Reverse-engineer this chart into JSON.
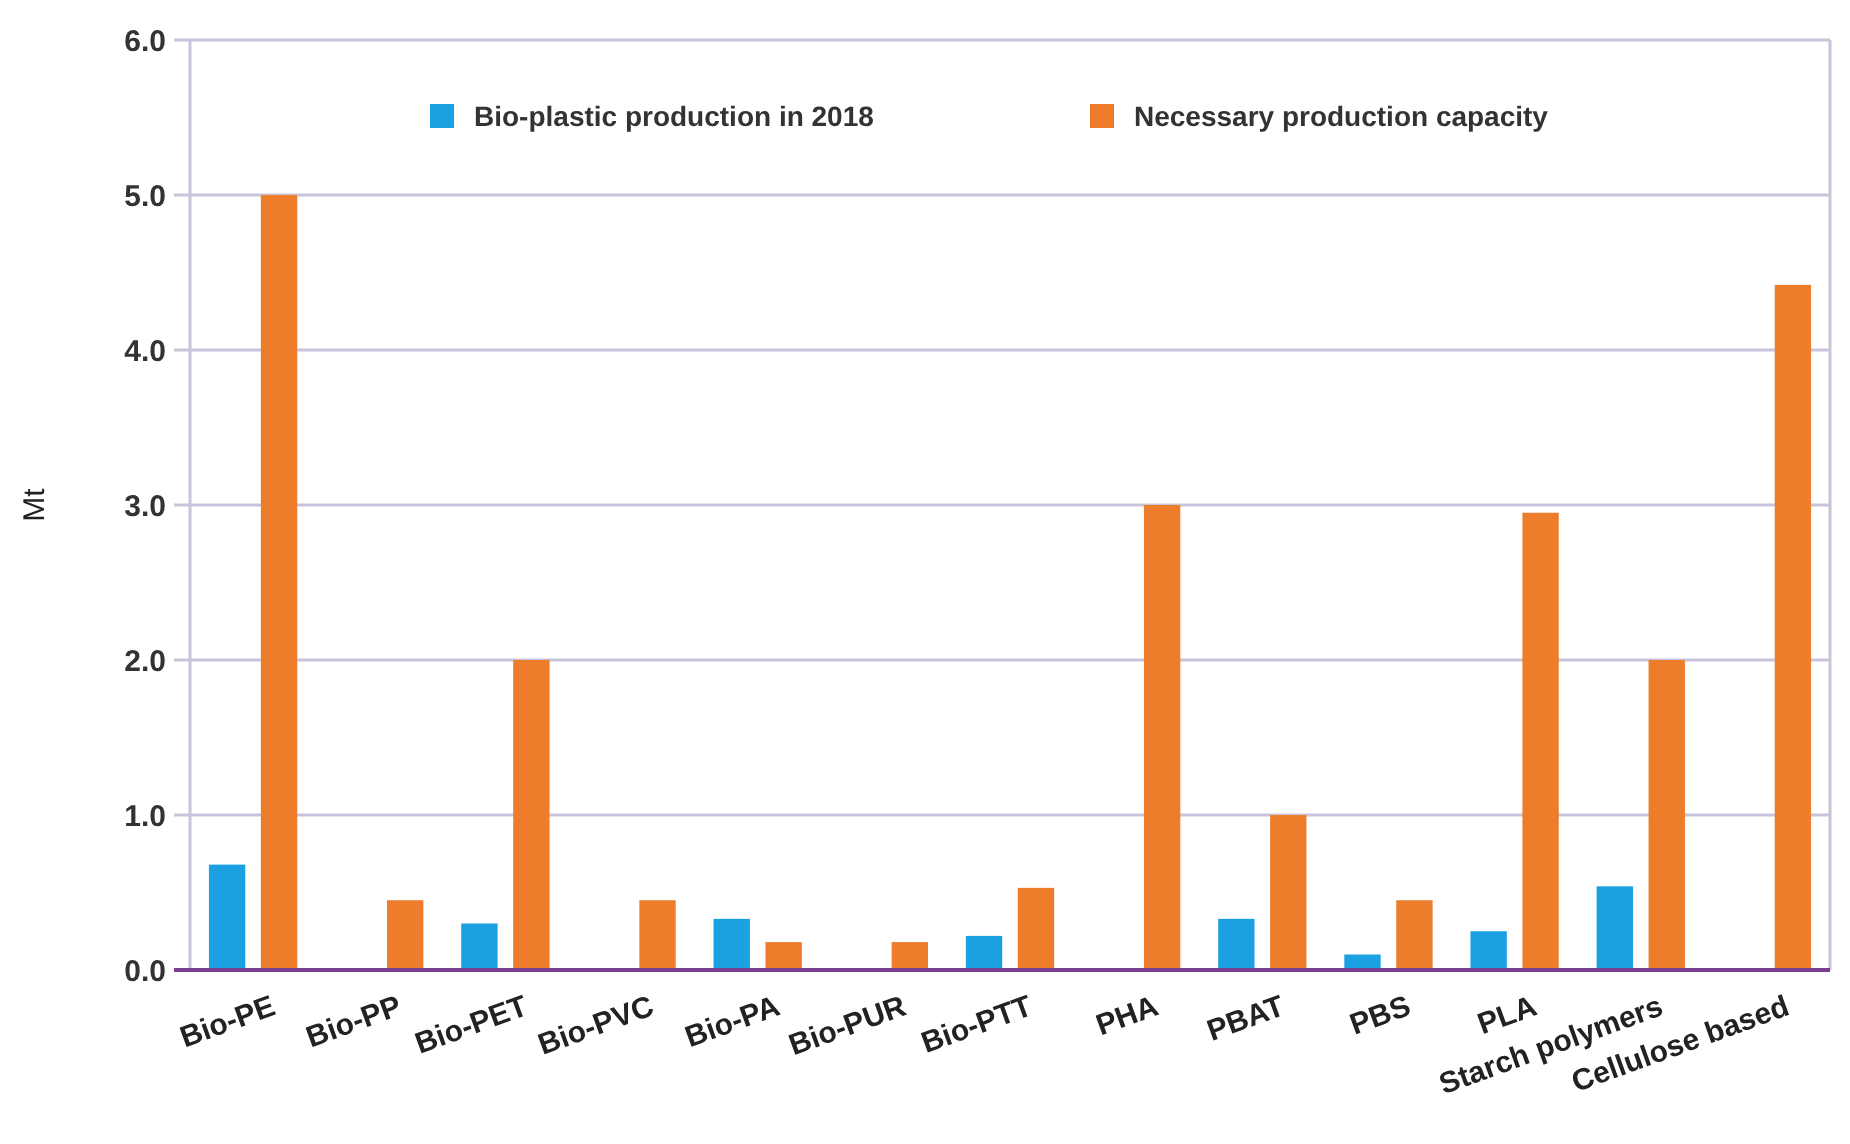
{
  "chart_data": {
    "type": "bar",
    "ylabel": "Mt",
    "categories": [
      "Bio-PE",
      "Bio-PP",
      "Bio-PET",
      "Bio-PVC",
      "Bio-PA",
      "Bio-PUR",
      "Bio-PTT",
      "PHA",
      "PBAT",
      "PBS",
      "PLA",
      "Starch polymers",
      "Cellulose based"
    ],
    "series": [
      {
        "name": "Bio-plastic production in 2018",
        "color": "#1ba1e2",
        "values": [
          0.68,
          null,
          0.3,
          null,
          0.33,
          null,
          0.22,
          null,
          0.33,
          0.1,
          0.25,
          0.54,
          null
        ]
      },
      {
        "name": "Necessary production capacity",
        "color": "#ee7d2b",
        "values": [
          5.0,
          0.45,
          2.0,
          0.45,
          0.18,
          0.18,
          0.53,
          3.0,
          1.0,
          0.45,
          2.95,
          2.0,
          4.42
        ]
      }
    ],
    "ylim": [
      0,
      6
    ],
    "yticks": [
      {
        "value": 0,
        "label": "0.0"
      },
      {
        "value": 1,
        "label": "1.0"
      },
      {
        "value": 2,
        "label": "2.0"
      },
      {
        "value": 3,
        "label": "3.0"
      },
      {
        "value": 4,
        "label": "4.0"
      },
      {
        "value": 5,
        "label": "5.0"
      },
      {
        "value": 6,
        "label": "6.0"
      }
    ],
    "grid": "y",
    "legend": "top"
  }
}
